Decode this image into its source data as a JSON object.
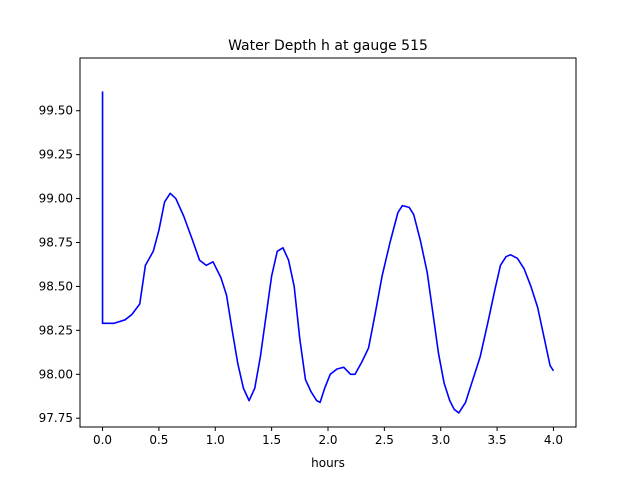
{
  "chart_data": {
    "type": "line",
    "title": "Water Depth h at gauge 515",
    "xlabel": "hours",
    "ylabel": "",
    "xlim": [
      -0.2,
      4.2
    ],
    "ylim": [
      97.7,
      99.8
    ],
    "xticks": [
      0.0,
      0.5,
      1.0,
      1.5,
      2.0,
      2.5,
      3.0,
      3.5,
      4.0
    ],
    "xtick_labels": [
      "0.0",
      "0.5",
      "1.0",
      "1.5",
      "2.0",
      "2.5",
      "3.0",
      "3.5",
      "4.0"
    ],
    "yticks": [
      97.75,
      98.0,
      98.25,
      98.5,
      98.75,
      99.0,
      99.25,
      99.5
    ],
    "ytick_labels": [
      "97.75",
      "98.00",
      "98.25",
      "98.50",
      "98.75",
      "99.00",
      "99.25",
      "99.50"
    ],
    "grid": false,
    "series": [
      {
        "color": "#0000ff",
        "points": [
          [
            0.0,
            99.61
          ],
          [
            0.0,
            98.29
          ],
          [
            0.1,
            98.29
          ],
          [
            0.2,
            98.31
          ],
          [
            0.26,
            98.34
          ],
          [
            0.33,
            98.4
          ],
          [
            0.38,
            98.62
          ],
          [
            0.45,
            98.7
          ],
          [
            0.5,
            98.82
          ],
          [
            0.55,
            98.98
          ],
          [
            0.6,
            99.03
          ],
          [
            0.65,
            99.0
          ],
          [
            0.72,
            98.9
          ],
          [
            0.8,
            98.76
          ],
          [
            0.86,
            98.65
          ],
          [
            0.92,
            98.62
          ],
          [
            0.98,
            98.64
          ],
          [
            1.05,
            98.55
          ],
          [
            1.1,
            98.45
          ],
          [
            1.15,
            98.25
          ],
          [
            1.2,
            98.06
          ],
          [
            1.25,
            97.92
          ],
          [
            1.3,
            97.85
          ],
          [
            1.35,
            97.92
          ],
          [
            1.4,
            98.1
          ],
          [
            1.45,
            98.33
          ],
          [
            1.5,
            98.56
          ],
          [
            1.55,
            98.7
          ],
          [
            1.6,
            98.72
          ],
          [
            1.65,
            98.65
          ],
          [
            1.7,
            98.5
          ],
          [
            1.75,
            98.2
          ],
          [
            1.8,
            97.97
          ],
          [
            1.85,
            97.9
          ],
          [
            1.9,
            97.85
          ],
          [
            1.93,
            97.84
          ],
          [
            1.97,
            97.92
          ],
          [
            2.02,
            98.0
          ],
          [
            2.08,
            98.03
          ],
          [
            2.14,
            98.04
          ],
          [
            2.2,
            98.0
          ],
          [
            2.24,
            98.0
          ],
          [
            2.3,
            98.07
          ],
          [
            2.36,
            98.15
          ],
          [
            2.42,
            98.35
          ],
          [
            2.48,
            98.56
          ],
          [
            2.55,
            98.75
          ],
          [
            2.62,
            98.92
          ],
          [
            2.66,
            98.96
          ],
          [
            2.72,
            98.95
          ],
          [
            2.76,
            98.91
          ],
          [
            2.82,
            98.76
          ],
          [
            2.88,
            98.58
          ],
          [
            2.93,
            98.35
          ],
          [
            2.98,
            98.12
          ],
          [
            3.03,
            97.95
          ],
          [
            3.08,
            97.85
          ],
          [
            3.12,
            97.8
          ],
          [
            3.16,
            97.78
          ],
          [
            3.22,
            97.84
          ],
          [
            3.28,
            97.96
          ],
          [
            3.35,
            98.1
          ],
          [
            3.42,
            98.3
          ],
          [
            3.48,
            98.48
          ],
          [
            3.53,
            98.62
          ],
          [
            3.58,
            98.67
          ],
          [
            3.62,
            98.68
          ],
          [
            3.68,
            98.66
          ],
          [
            3.74,
            98.6
          ],
          [
            3.8,
            98.5
          ],
          [
            3.86,
            98.38
          ],
          [
            3.92,
            98.2
          ],
          [
            3.97,
            98.05
          ],
          [
            4.0,
            98.02
          ]
        ]
      }
    ]
  }
}
